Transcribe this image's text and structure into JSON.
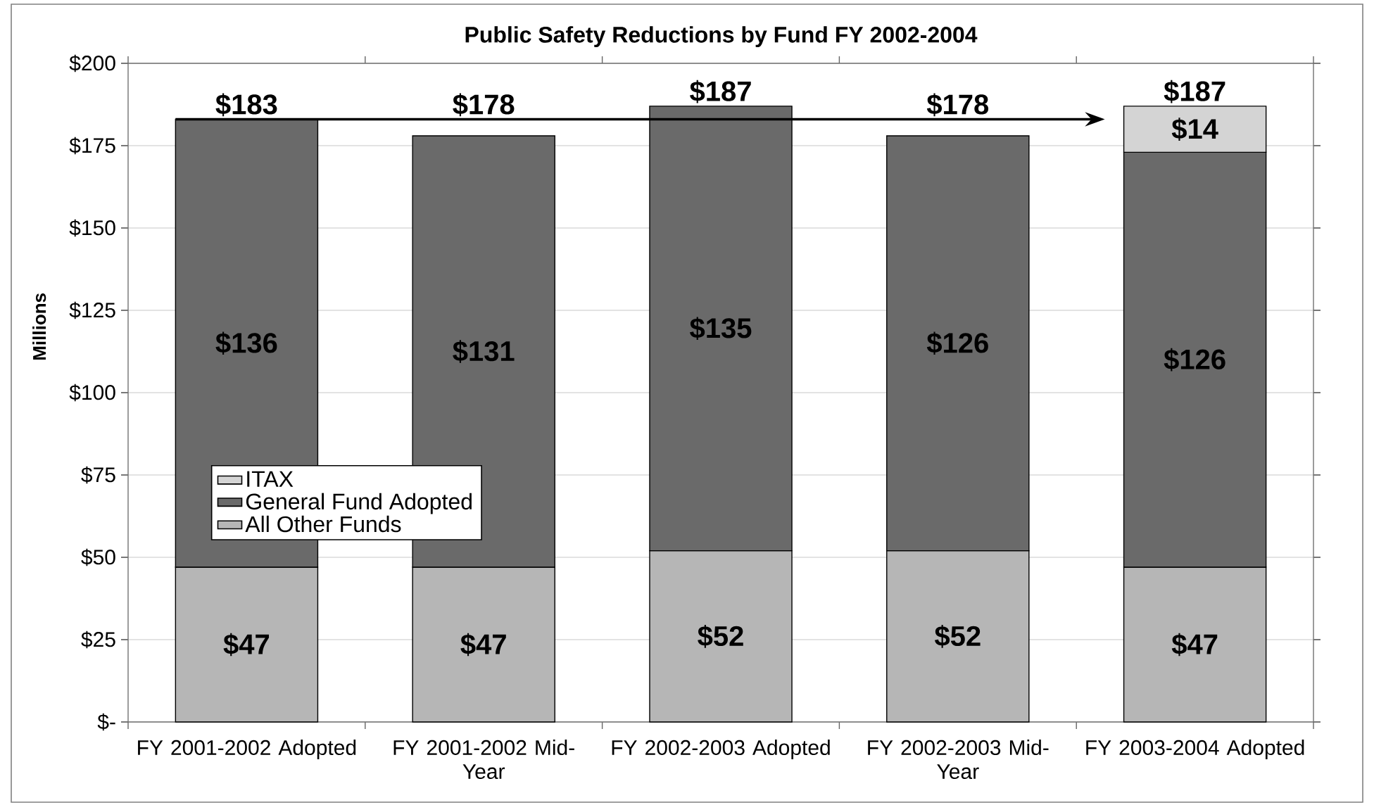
{
  "chart_data": {
    "type": "bar",
    "stacked": true,
    "title": "Public Safety Reductions by Fund FY 2002-2004",
    "ylabel": "Millions",
    "categories": [
      "FY 2001-2002 Adopted",
      "FY 2001-2002 Mid-Year",
      "FY 2002-2003 Adopted",
      "FY 2002-2003 Mid-Year",
      "FY 2003-2004 Adopted"
    ],
    "series": [
      {
        "name": "All Other Funds",
        "color": "#b6b6b6",
        "values": [
          47,
          47,
          52,
          52,
          47
        ],
        "value_labels": [
          "$47",
          "$47",
          "$52",
          "$52",
          "$47"
        ]
      },
      {
        "name": "General Fund Adopted",
        "color": "#6a6a6a",
        "values": [
          136,
          131,
          135,
          126,
          126
        ],
        "value_labels": [
          "$136",
          "$131",
          "$135",
          "$126",
          "$126"
        ]
      },
      {
        "name": "ITAX",
        "color": "#d4d4d4",
        "values": [
          null,
          null,
          null,
          null,
          14
        ],
        "value_labels": [
          null,
          null,
          null,
          null,
          "$14"
        ]
      }
    ],
    "totals": [
      "$183",
      "$178",
      "$187",
      "$178",
      "$187"
    ],
    "ylim": [
      0,
      200
    ],
    "yticks": [
      {
        "value": 0,
        "label": "$-"
      },
      {
        "value": 25,
        "label": "$25"
      },
      {
        "value": 50,
        "label": "$50"
      },
      {
        "value": 75,
        "label": "$75"
      },
      {
        "value": 100,
        "label": "$100"
      },
      {
        "value": 125,
        "label": "$125"
      },
      {
        "value": 150,
        "label": "$150"
      },
      {
        "value": 175,
        "label": "$175"
      },
      {
        "value": 200,
        "label": "$200"
      }
    ],
    "grid": "y",
    "legend": "left",
    "ref_lines": [
      {
        "axis": "y",
        "value": 183,
        "color": "#000000",
        "line_style": "solid"
      }
    ]
  }
}
